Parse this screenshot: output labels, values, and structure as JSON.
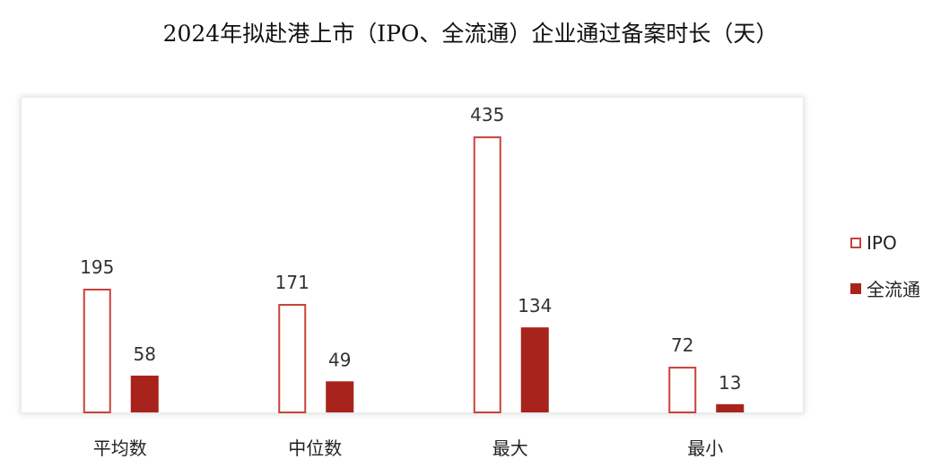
{
  "chart_data": {
    "type": "bar",
    "title": "2024年拟赴港上市（IPO、全流通）企业通过备案时长（天）",
    "categories": [
      "平均数",
      "中位数",
      "最大",
      "最小"
    ],
    "series": [
      {
        "name": "IPO",
        "values": [
          195,
          171,
          435,
          72
        ],
        "color": "#c8423a",
        "style": "outline"
      },
      {
        "name": "全流通",
        "values": [
          58,
          49,
          134,
          13
        ],
        "color": "#a8231b",
        "style": "filled"
      }
    ],
    "xlabel": "",
    "ylabel": "",
    "ylim": [
      0,
      490
    ],
    "grid": false,
    "legend": "right",
    "data_labels": true
  }
}
